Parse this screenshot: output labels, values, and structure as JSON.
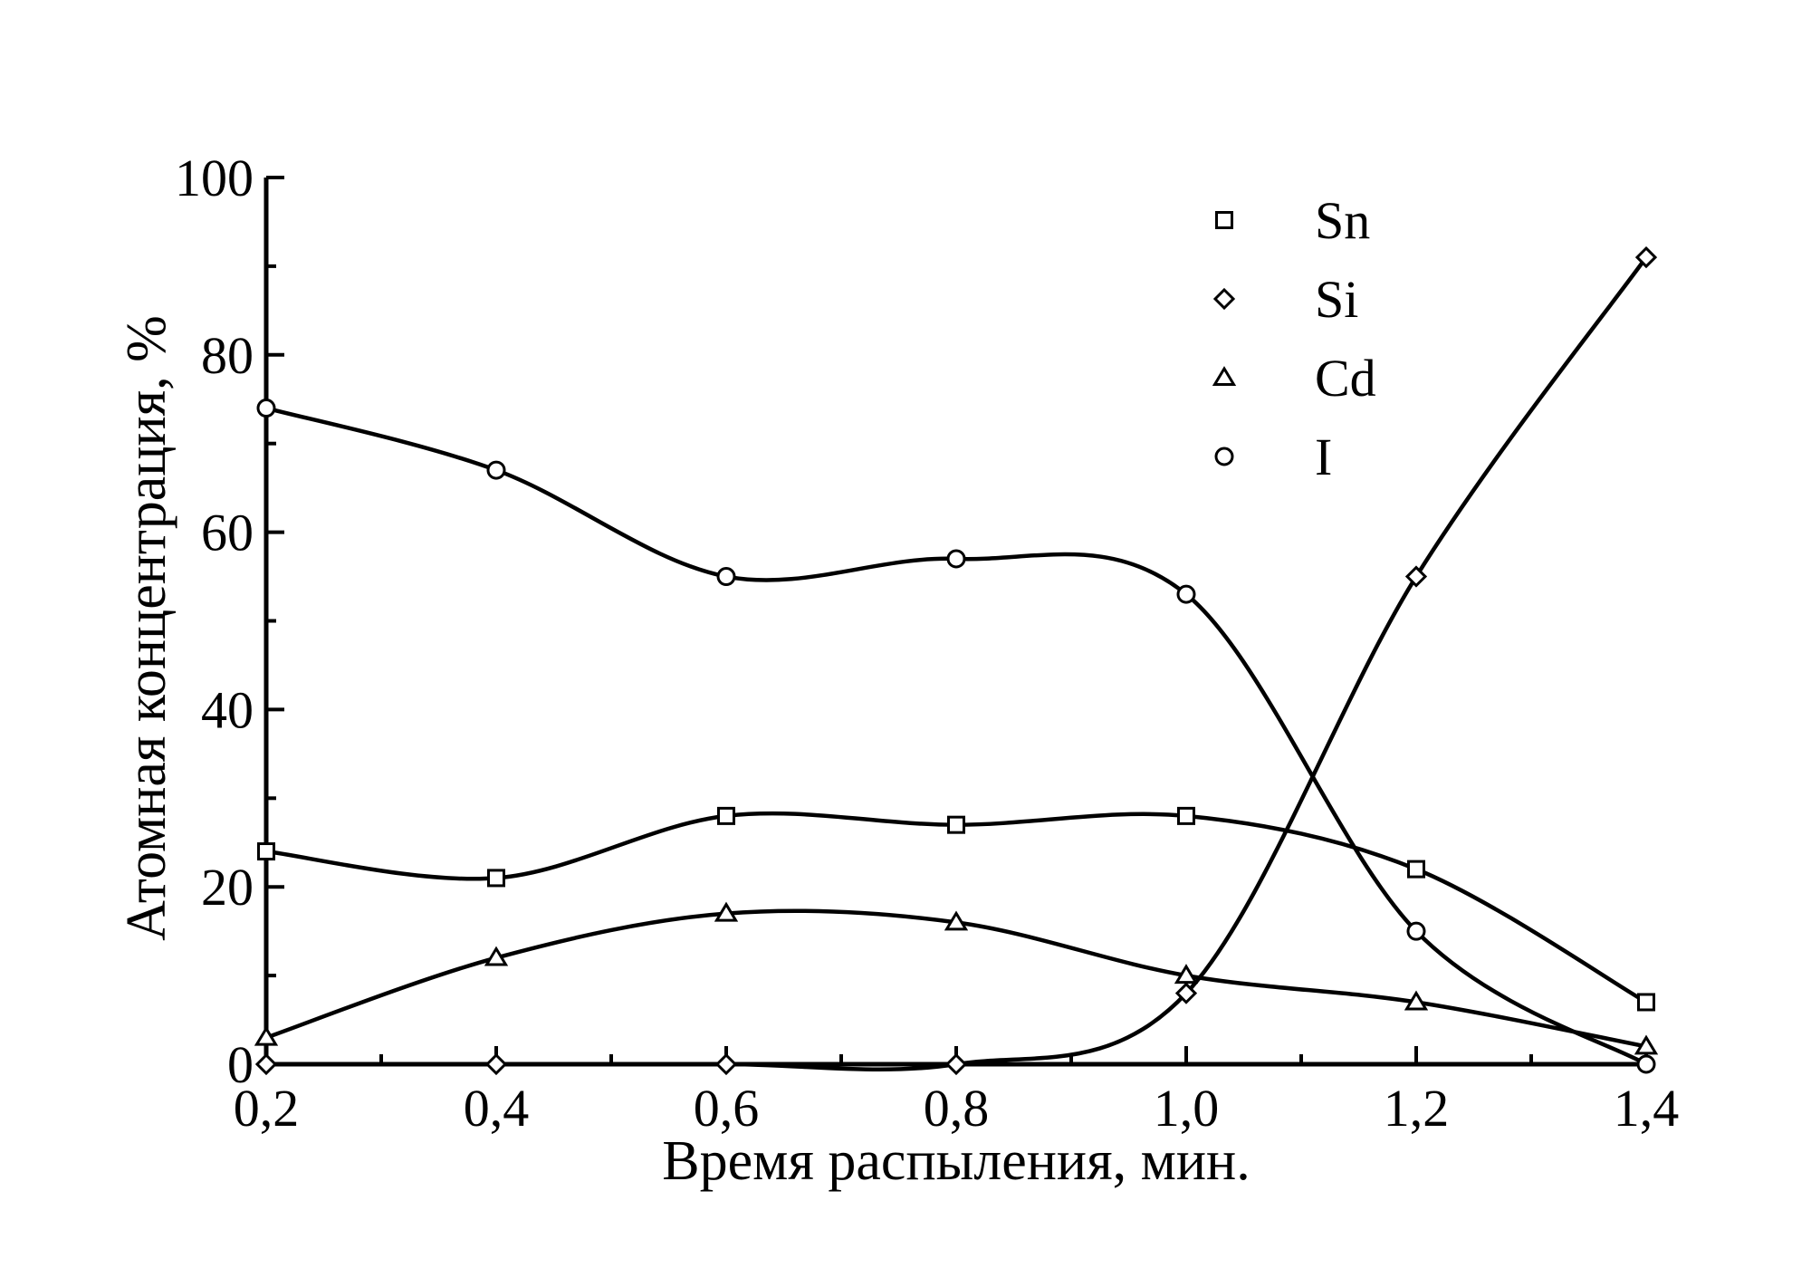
{
  "chart_data": {
    "type": "line",
    "xlabel": "Время распыления, мин.",
    "ylabel": "Атомная концентрация, %",
    "xlim": [
      0.2,
      1.4
    ],
    "ylim": [
      0,
      100
    ],
    "x_ticks": [
      "0,2",
      "0,4",
      "0,6",
      "0,8",
      "1,0",
      "1,2",
      "1,4"
    ],
    "y_ticks": [
      "0",
      "20",
      "40",
      "60",
      "80",
      "100"
    ],
    "grid": false,
    "legend_position": "top-right",
    "line_color": "#000000",
    "x": [
      0.2,
      0.4,
      0.6,
      0.8,
      1.0,
      1.2,
      1.4
    ],
    "series": [
      {
        "name": "Sn",
        "marker": "square",
        "values": [
          24,
          21,
          28,
          27,
          28,
          22,
          7
        ]
      },
      {
        "name": "Si",
        "marker": "diamond",
        "values": [
          0,
          0,
          0,
          0,
          8,
          55,
          91
        ]
      },
      {
        "name": "Cd",
        "marker": "triangle",
        "values": [
          3,
          12,
          17,
          16,
          10,
          7,
          2
        ]
      },
      {
        "name": "I",
        "marker": "circle",
        "values": [
          74,
          67,
          55,
          57,
          53,
          15,
          0
        ]
      }
    ]
  }
}
